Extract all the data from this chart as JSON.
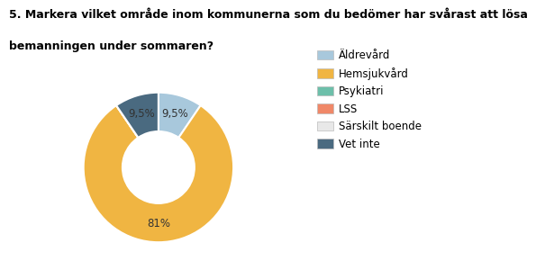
{
  "title_line1": "5. Markera vilket område inom kommunerna som du bedömer har svårast att lösa",
  "title_line2": "bemanningen under sommaren?",
  "slices": [
    9.5,
    81.0,
    0.0,
    0.0,
    0.0,
    9.5
  ],
  "labels_display": [
    "9,5%",
    "81%",
    "",
    "",
    "",
    "9,5%"
  ],
  "colors": [
    "#a8c8dc",
    "#f0b542",
    "#6dbfaa",
    "#f08868",
    "#e8e8e8",
    "#4a6a80"
  ],
  "legend_labels": [
    "Äldrevård",
    "Hemsjukvård",
    "Psykiatri",
    "LSS",
    "Särskilt boende",
    "Vet inte"
  ],
  "background_color": "#ffffff",
  "title_fontsize": 9,
  "legend_fontsize": 8.5,
  "label_fontsize": 8.5
}
